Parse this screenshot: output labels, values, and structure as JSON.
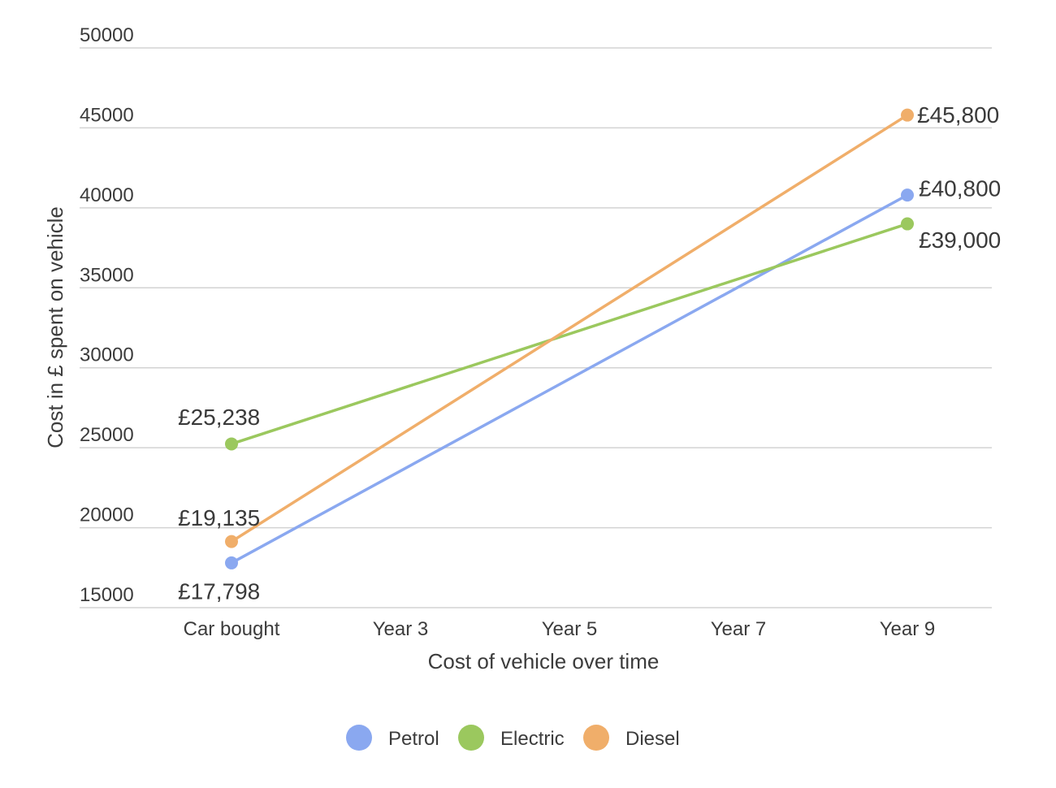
{
  "chart_data": {
    "type": "line",
    "title": "",
    "xlabel": "Cost of vehicle over time",
    "ylabel": "Cost in £ spent on vehicle",
    "categories": [
      "Car bought",
      "Year 3",
      "Year 5",
      "Year 7",
      "Year 9"
    ],
    "ylim": [
      15000,
      50000
    ],
    "yticks": [
      "15000",
      "20000",
      "25000",
      "30000",
      "35000",
      "40000",
      "45000",
      "50000"
    ],
    "grid": true,
    "legend_position": "bottom",
    "series": [
      {
        "name": "Petrol",
        "color": "#8aa8f0",
        "points": [
          {
            "x": "Car bought",
            "y": 17798
          },
          {
            "x": "Year 9",
            "y": 40800
          }
        ],
        "labels": [
          "£17,798",
          "£40,800"
        ]
      },
      {
        "name": "Electric",
        "color": "#9bc85e",
        "points": [
          {
            "x": "Car bought",
            "y": 25238
          },
          {
            "x": "Year 9",
            "y": 39000
          }
        ],
        "labels": [
          "£25,238",
          "£39,000"
        ]
      },
      {
        "name": "Diesel",
        "color": "#f0ae6a",
        "points": [
          {
            "x": "Car bought",
            "y": 19135
          },
          {
            "x": "Year 9",
            "y": 45800
          }
        ],
        "labels": [
          "£19,135",
          "£45,800"
        ]
      }
    ]
  }
}
